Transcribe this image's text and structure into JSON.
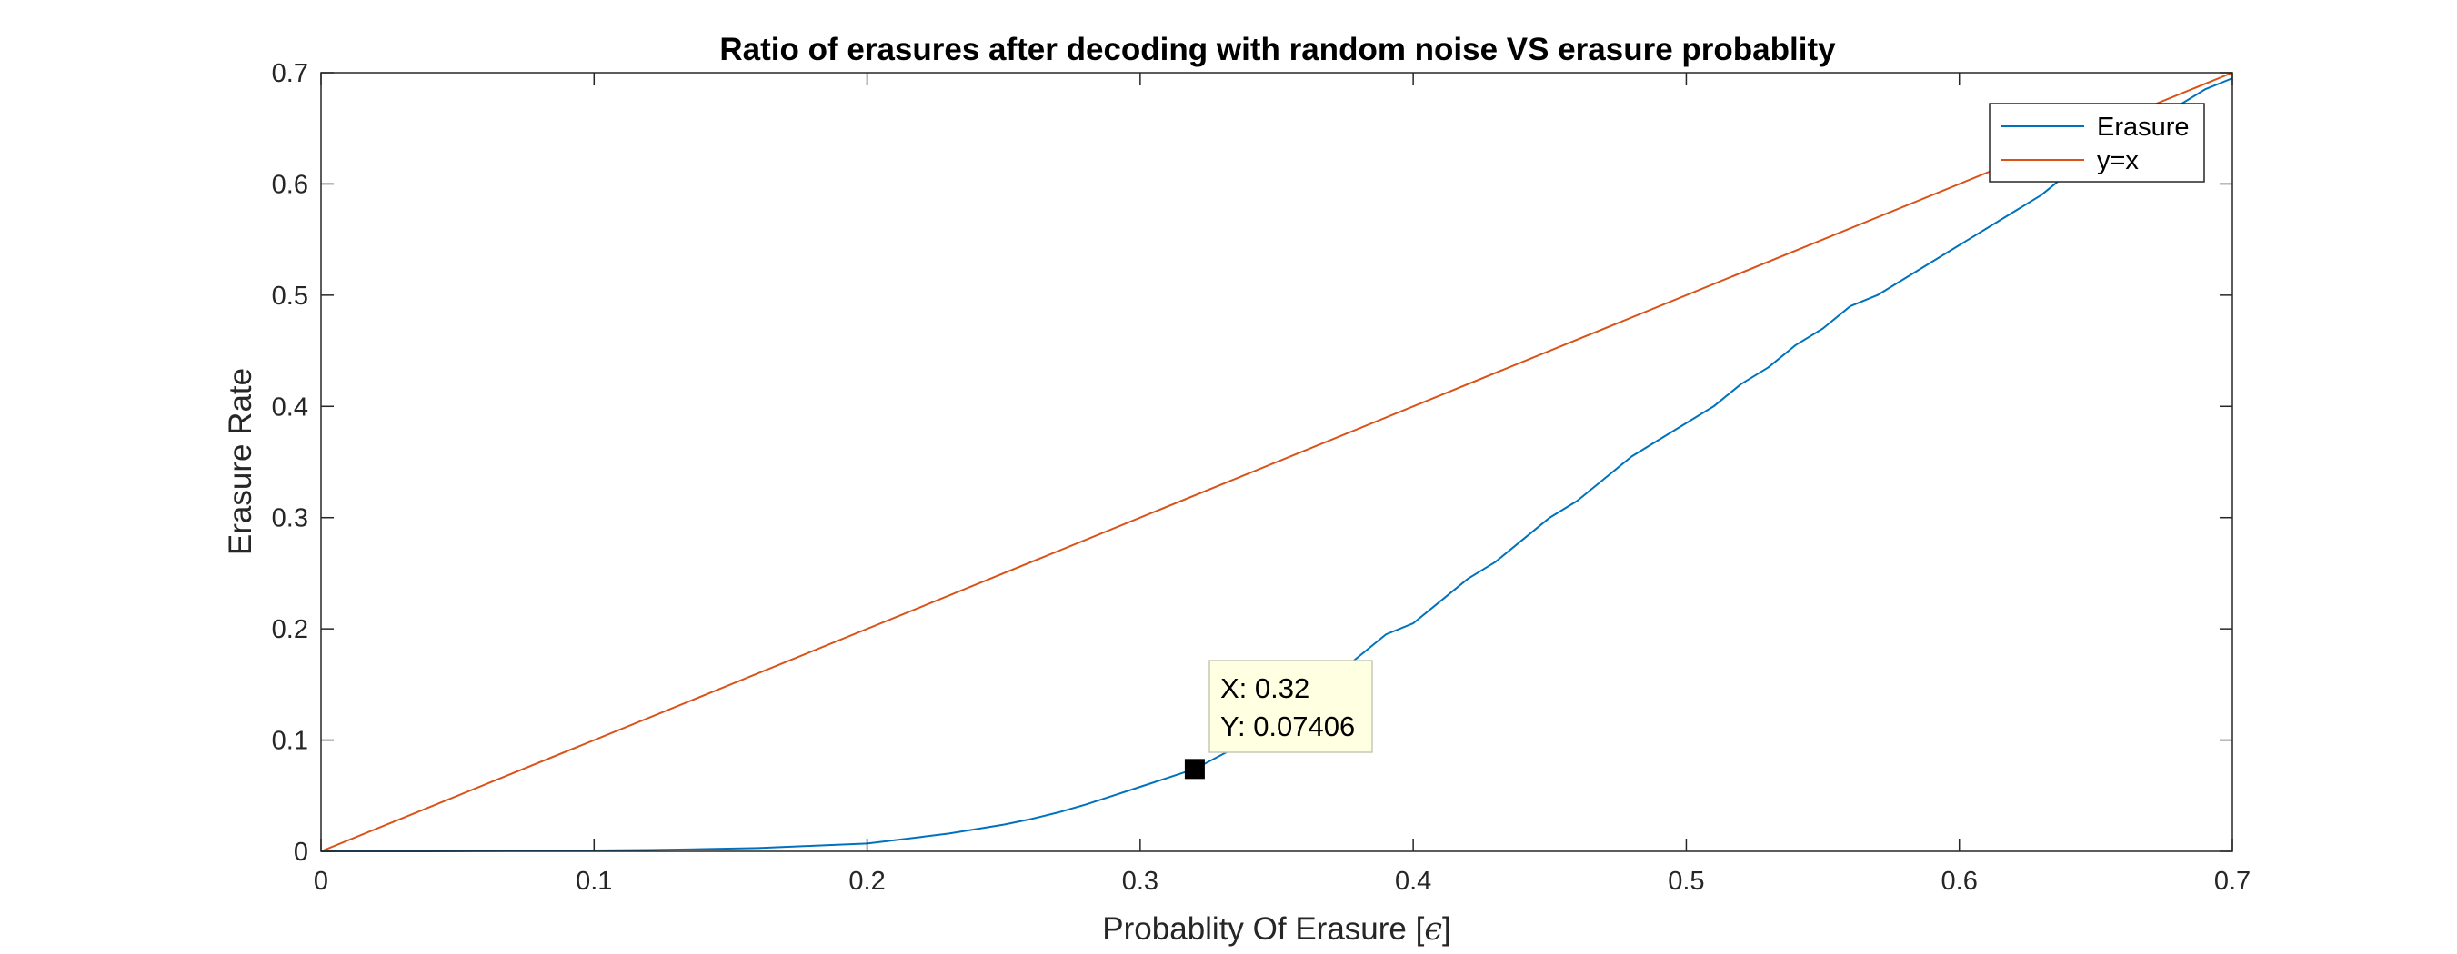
{
  "chart_data": {
    "type": "line",
    "title": "Ratio of erasures after decoding with random noise VS erasure probablity",
    "xlabel": "Probablity Of Erasure [",
    "xlabel_symbol": "ϵ",
    "xlabel_close": "]",
    "ylabel": "Erasure Rate",
    "xlim": [
      0,
      0.7
    ],
    "ylim": [
      0,
      0.7
    ],
    "xticks": [
      0,
      0.1,
      0.2,
      0.3,
      0.4,
      0.5,
      0.6,
      0.7
    ],
    "xtick_labels": [
      "0",
      "0.1",
      "0.2",
      "0.3",
      "0.4",
      "0.5",
      "0.6",
      "0.7"
    ],
    "yticks": [
      0,
      0.1,
      0.2,
      0.3,
      0.4,
      0.5,
      0.6,
      0.7
    ],
    "ytick_labels": [
      "0",
      "0.1",
      "0.2",
      "0.3",
      "0.4",
      "0.5",
      "0.6",
      "0.7"
    ],
    "grid": false,
    "legend_position": "top-right",
    "series": [
      {
        "name": "Erasure",
        "color": "#0072BD",
        "x": [
          0,
          0.02,
          0.04,
          0.06,
          0.08,
          0.1,
          0.12,
          0.14,
          0.16,
          0.18,
          0.19,
          0.2,
          0.21,
          0.22,
          0.23,
          0.24,
          0.25,
          0.26,
          0.27,
          0.28,
          0.29,
          0.3,
          0.31,
          0.32,
          0.33,
          0.34,
          0.35,
          0.36,
          0.37,
          0.38,
          0.39,
          0.4,
          0.41,
          0.42,
          0.43,
          0.44,
          0.45,
          0.46,
          0.47,
          0.48,
          0.49,
          0.5,
          0.51,
          0.52,
          0.53,
          0.54,
          0.55,
          0.56,
          0.57,
          0.58,
          0.59,
          0.6,
          0.61,
          0.62,
          0.63,
          0.64,
          0.65,
          0.66,
          0.67,
          0.68,
          0.69,
          0.7
        ],
        "y": [
          0,
          0,
          0,
          0.0003,
          0.0005,
          0.0008,
          0.0012,
          0.002,
          0.003,
          0.005,
          0.006,
          0.007,
          0.01,
          0.013,
          0.016,
          0.02,
          0.024,
          0.029,
          0.035,
          0.042,
          0.05,
          0.058,
          0.066,
          0.07406,
          0.087,
          0.1,
          0.117,
          0.135,
          0.155,
          0.175,
          0.195,
          0.205,
          0.225,
          0.245,
          0.26,
          0.28,
          0.3,
          0.315,
          0.335,
          0.355,
          0.37,
          0.385,
          0.4,
          0.42,
          0.435,
          0.455,
          0.47,
          0.49,
          0.5,
          0.515,
          0.53,
          0.545,
          0.56,
          0.575,
          0.59,
          0.61,
          0.625,
          0.64,
          0.655,
          0.67,
          0.685,
          0.695
        ]
      },
      {
        "name": "y=x",
        "color": "#D95319",
        "x": [
          0,
          0.7
        ],
        "y": [
          0,
          0.7
        ]
      }
    ],
    "datatip": {
      "x": 0.32,
      "y": 0.07406,
      "x_text": "X: 0.32",
      "y_text": "Y: 0.07406"
    }
  }
}
